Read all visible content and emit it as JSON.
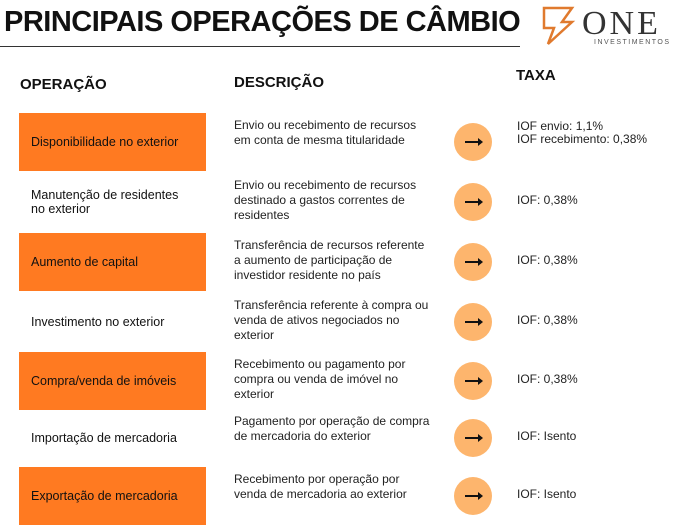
{
  "header": {
    "title": "PRINCIPAIS OPERAÇÕES DE CÂMBIO",
    "logo_name": "ONE",
    "logo_sub": "INVESTIMENTOS"
  },
  "table": {
    "columns": [
      "OPERAÇÃO",
      "DESCRIÇÃO",
      "TAXA"
    ],
    "rows": [
      {
        "operation": "Disponibilidade no exterior",
        "description": "Envio ou recebimento de recursos em conta de mesma titularidade",
        "taxa": [
          "IOF envio: 1,1%",
          "IOF recebimento: 0,38%"
        ]
      },
      {
        "operation": "Manutenção de residentes no exterior",
        "description": "Envio ou recebimento de recursos destinado a gastos correntes de residentes",
        "taxa": [
          "IOF: 0,38%"
        ]
      },
      {
        "operation": "Aumento de capital",
        "description": "Transferência de recursos referente a aumento de participação de investidor residente no país",
        "taxa": [
          "IOF: 0,38%"
        ]
      },
      {
        "operation": "Investimento no exterior",
        "description": "Transferência referente à compra ou venda de ativos negociados no exterior",
        "taxa": [
          "IOF: 0,38%"
        ]
      },
      {
        "operation": "Compra/venda de imóveis",
        "description": "Recebimento ou pagamento por compra ou venda de imóvel no exterior",
        "taxa": [
          "IOF: 0,38%"
        ]
      },
      {
        "operation": "Importação de mercadoria",
        "description": "Pagamento por operação de compra de mercadoria do exterior",
        "taxa": [
          "IOF: Isento"
        ]
      },
      {
        "operation": "Exportação de mercadoria",
        "description": "Recebimento por operação por venda de mercadoria ao exterior",
        "taxa": [
          "IOF: Isento"
        ]
      }
    ]
  }
}
